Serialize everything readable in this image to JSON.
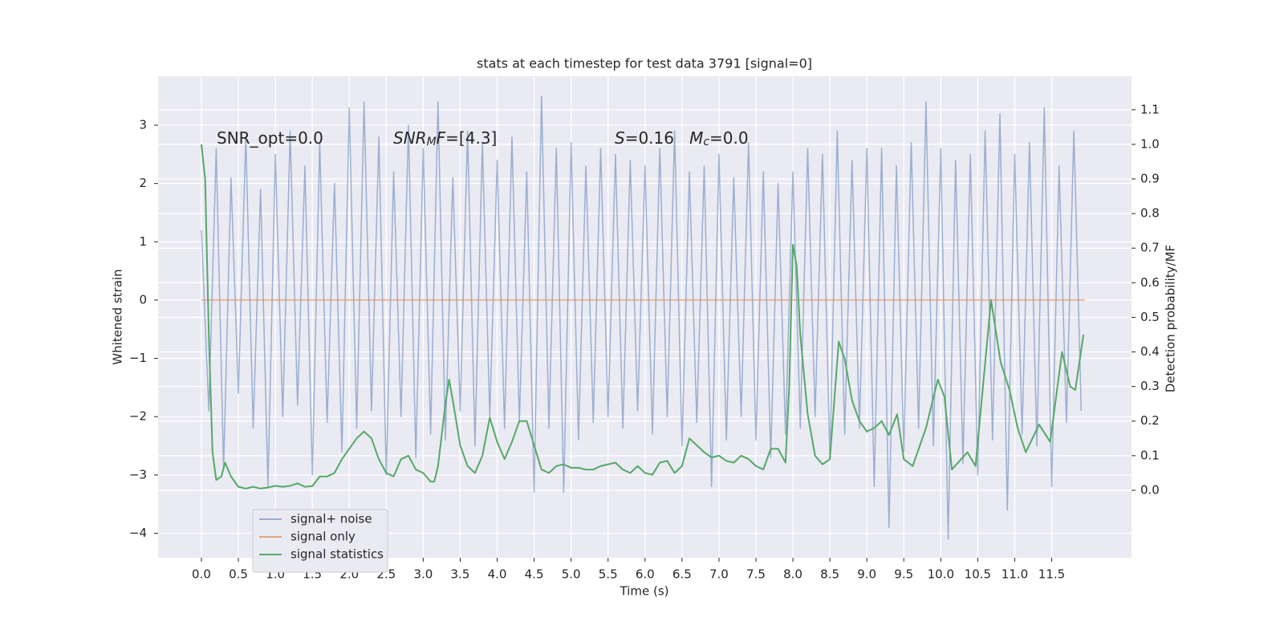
{
  "chart_data": {
    "type": "line",
    "title": "stats at each timestep for test data 3791 [signal=0]",
    "xlabel": "Time (s)",
    "ylabel": "Whitened strain",
    "y2label": "Detection probability/MF",
    "xlim": [
      -0.586,
      12.58
    ],
    "ylim": [
      -4.42,
      3.84
    ],
    "y2lim": [
      -0.195,
      1.197
    ],
    "xticks": [
      {
        "value": 0,
        "label": "0.0"
      },
      0.5,
      {
        "value": 1,
        "label": "1.0"
      },
      1.5,
      {
        "value": 2,
        "label": "2.0"
      },
      2.5,
      {
        "value": 3,
        "label": "3.0"
      },
      3.5,
      {
        "value": 4,
        "label": "4.0"
      },
      4.5,
      {
        "value": 5,
        "label": "5.0"
      },
      5.5,
      {
        "value": 6,
        "label": "6.0"
      },
      6.5,
      {
        "value": 7,
        "label": "7.0"
      },
      7.5,
      {
        "value": 8,
        "label": "8.0"
      },
      8.5,
      {
        "value": 9,
        "label": "9.0"
      },
      9.5,
      {
        "value": 10,
        "label": "10.0"
      },
      10.5,
      {
        "value": 11,
        "label": "11.0"
      },
      11.5
    ],
    "yticks": [
      {
        "value": -4,
        "label": "−4"
      },
      {
        "value": -3,
        "label": "−3"
      },
      {
        "value": -2,
        "label": "−2"
      },
      {
        "value": -1,
        "label": "−1"
      },
      0,
      1,
      2,
      3
    ],
    "y2ticks": [
      {
        "value": 0,
        "label": "0.0"
      },
      0.1,
      0.2,
      0.3,
      0.4,
      0.5,
      0.6,
      0.7,
      0.8,
      0.9,
      {
        "value": 1,
        "label": "1.0"
      },
      1.1
    ],
    "grid": true,
    "legend": "lower left",
    "annotations": [
      [
        {
          "text": "SNR_opt=0.0",
          "style": "normal"
        }
      ],
      [
        {
          "text": "SNR",
          "style": "italic"
        },
        {
          "text": "M",
          "style": "sub"
        },
        {
          "text": "F",
          "style": "italic"
        },
        {
          "text": "=[4.3]",
          "style": "normal"
        }
      ],
      [
        {
          "text": "S",
          "style": "italic"
        },
        {
          "text": "=0.16   ",
          "style": "normal"
        },
        {
          "text": "M",
          "style": "italic"
        },
        {
          "text": "c",
          "style": "sub"
        },
        {
          "text": "=0.0",
          "style": "normal"
        }
      ]
    ],
    "series": [
      {
        "name": "signal+ noise",
        "color": "#4c72b0",
        "opacity": 0.5,
        "axis": "y",
        "x": [
          0.0,
          0.1,
          0.2,
          0.3,
          0.4,
          0.5,
          0.6,
          0.7,
          0.8,
          0.9,
          1.0,
          1.1,
          1.2,
          1.3,
          1.4,
          1.5,
          1.6,
          1.7,
          1.8,
          1.9,
          2.0,
          2.1,
          2.2,
          2.3,
          2.4,
          2.5,
          2.6,
          2.7,
          2.8,
          2.9,
          3.0,
          3.1,
          3.2,
          3.3,
          3.4,
          3.5,
          3.6,
          3.7,
          3.8,
          3.9,
          4.0,
          4.1,
          4.2,
          4.3,
          4.4,
          4.5,
          4.6,
          4.7,
          4.8,
          4.9,
          5.0,
          5.1,
          5.2,
          5.3,
          5.4,
          5.5,
          5.6,
          5.7,
          5.8,
          5.9,
          6.0,
          6.1,
          6.2,
          6.3,
          6.4,
          6.5,
          6.6,
          6.7,
          6.8,
          6.9,
          7.0,
          7.1,
          7.2,
          7.3,
          7.4,
          7.5,
          7.6,
          7.7,
          7.8,
          7.9,
          8.0,
          8.1,
          8.2,
          8.3,
          8.4,
          8.5,
          8.6,
          8.7,
          8.8,
          8.9,
          9.0,
          9.1,
          9.2,
          9.3,
          9.4,
          9.5,
          9.6,
          9.7,
          9.8,
          9.9,
          10.0,
          10.1,
          10.2,
          10.3,
          10.4,
          10.5,
          10.6,
          10.7,
          10.8,
          10.9,
          11.0,
          11.1,
          11.2,
          11.3,
          11.4,
          11.5,
          11.6,
          11.7,
          11.8,
          11.9
        ],
        "values": [
          1.2,
          -1.9,
          2.6,
          -2.9,
          2.1,
          -1.6,
          2.8,
          -2.2,
          1.9,
          -3.2,
          2.5,
          -2.0,
          2.9,
          -1.8,
          2.3,
          -3.0,
          2.7,
          -2.1,
          2.0,
          -2.6,
          3.3,
          -2.2,
          3.4,
          -1.9,
          2.8,
          -3.0,
          2.2,
          -2.0,
          3.0,
          -2.7,
          2.6,
          -2.3,
          3.4,
          -2.4,
          2.1,
          -1.9,
          2.9,
          -2.5,
          2.7,
          -2.0,
          2.4,
          -2.2,
          2.8,
          -2.1,
          2.2,
          -3.3,
          3.5,
          -2.2,
          2.6,
          -3.3,
          2.7,
          -2.4,
          2.3,
          -2.1,
          2.6,
          -2.0,
          2.5,
          -2.2,
          2.4,
          -1.9,
          2.3,
          -2.3,
          2.6,
          -2.0,
          2.9,
          -2.5,
          2.2,
          -2.1,
          2.3,
          -3.2,
          2.5,
          -2.4,
          2.1,
          -2.0,
          2.7,
          -2.4,
          2.2,
          -2.7,
          2.0,
          -2.3,
          2.2,
          -2.2,
          2.6,
          -2.0,
          2.5,
          -2.7,
          2.9,
          -2.3,
          2.4,
          -2.2,
          2.6,
          -3.2,
          2.6,
          -3.9,
          2.3,
          -2.6,
          2.7,
          -2.2,
          3.4,
          -2.5,
          2.6,
          -4.1,
          2.4,
          -2.8,
          2.5,
          -3.0,
          2.9,
          -2.4,
          3.2,
          -3.6,
          2.5,
          -2.3,
          2.7,
          -2.5,
          3.3,
          -3.2,
          2.3,
          -2.1,
          2.9,
          -1.9
        ]
      },
      {
        "name": "signal only",
        "color": "#dd8452",
        "opacity": 0.7,
        "axis": "y",
        "x": [
          0.0,
          11.95
        ],
        "values": [
          0,
          0
        ]
      },
      {
        "name": "signal statistics",
        "color": "#55a868",
        "opacity": 1,
        "axis": "y2",
        "x": [
          0.0,
          0.05,
          0.1,
          0.15,
          0.2,
          0.27,
          0.32,
          0.4,
          0.5,
          0.6,
          0.7,
          0.8,
          0.9,
          1.0,
          1.1,
          1.2,
          1.3,
          1.4,
          1.5,
          1.6,
          1.7,
          1.8,
          1.9,
          2.0,
          2.1,
          2.2,
          2.3,
          2.4,
          2.5,
          2.6,
          2.7,
          2.8,
          2.9,
          3.0,
          3.1,
          3.15,
          3.2,
          3.3,
          3.35,
          3.4,
          3.5,
          3.6,
          3.7,
          3.8,
          3.9,
          4.0,
          4.1,
          4.2,
          4.3,
          4.4,
          4.5,
          4.6,
          4.7,
          4.8,
          4.9,
          5.0,
          5.1,
          5.2,
          5.3,
          5.4,
          5.5,
          5.6,
          5.7,
          5.8,
          5.9,
          6.0,
          6.1,
          6.2,
          6.3,
          6.4,
          6.5,
          6.6,
          6.7,
          6.8,
          6.9,
          7.0,
          7.1,
          7.2,
          7.3,
          7.4,
          7.5,
          7.6,
          7.7,
          7.8,
          7.9,
          7.95,
          8.0,
          8.05,
          8.1,
          8.2,
          8.3,
          8.4,
          8.5,
          8.62,
          8.7,
          8.8,
          8.9,
          9.0,
          9.1,
          9.2,
          9.3,
          9.41,
          9.5,
          9.62,
          9.8,
          9.96,
          10.05,
          10.15,
          10.36,
          10.47,
          10.68,
          10.81,
          10.93,
          11.04,
          11.15,
          11.33,
          11.48,
          11.64,
          11.75,
          11.82,
          11.93
        ],
        "values": [
          1.0,
          0.9,
          0.45,
          0.11,
          0.03,
          0.04,
          0.08,
          0.04,
          0.01,
          0.005,
          0.01,
          0.005,
          0.008,
          0.013,
          0.01,
          0.013,
          0.02,
          0.01,
          0.012,
          0.04,
          0.04,
          0.05,
          0.09,
          0.12,
          0.15,
          0.17,
          0.15,
          0.09,
          0.05,
          0.04,
          0.09,
          0.1,
          0.06,
          0.05,
          0.025,
          0.025,
          0.07,
          0.25,
          0.32,
          0.26,
          0.13,
          0.07,
          0.05,
          0.1,
          0.21,
          0.14,
          0.09,
          0.14,
          0.2,
          0.2,
          0.13,
          0.06,
          0.05,
          0.07,
          0.075,
          0.065,
          0.065,
          0.06,
          0.06,
          0.07,
          0.075,
          0.08,
          0.06,
          0.05,
          0.07,
          0.05,
          0.045,
          0.08,
          0.085,
          0.05,
          0.07,
          0.15,
          0.13,
          0.11,
          0.095,
          0.1,
          0.085,
          0.08,
          0.1,
          0.09,
          0.07,
          0.06,
          0.12,
          0.12,
          0.08,
          0.3,
          0.71,
          0.65,
          0.45,
          0.22,
          0.1,
          0.075,
          0.09,
          0.43,
          0.38,
          0.26,
          0.2,
          0.17,
          0.18,
          0.2,
          0.16,
          0.22,
          0.09,
          0.07,
          0.18,
          0.32,
          0.27,
          0.06,
          0.11,
          0.07,
          0.55,
          0.37,
          0.29,
          0.18,
          0.11,
          0.19,
          0.14,
          0.4,
          0.3,
          0.29,
          0.45
        ]
      }
    ]
  }
}
